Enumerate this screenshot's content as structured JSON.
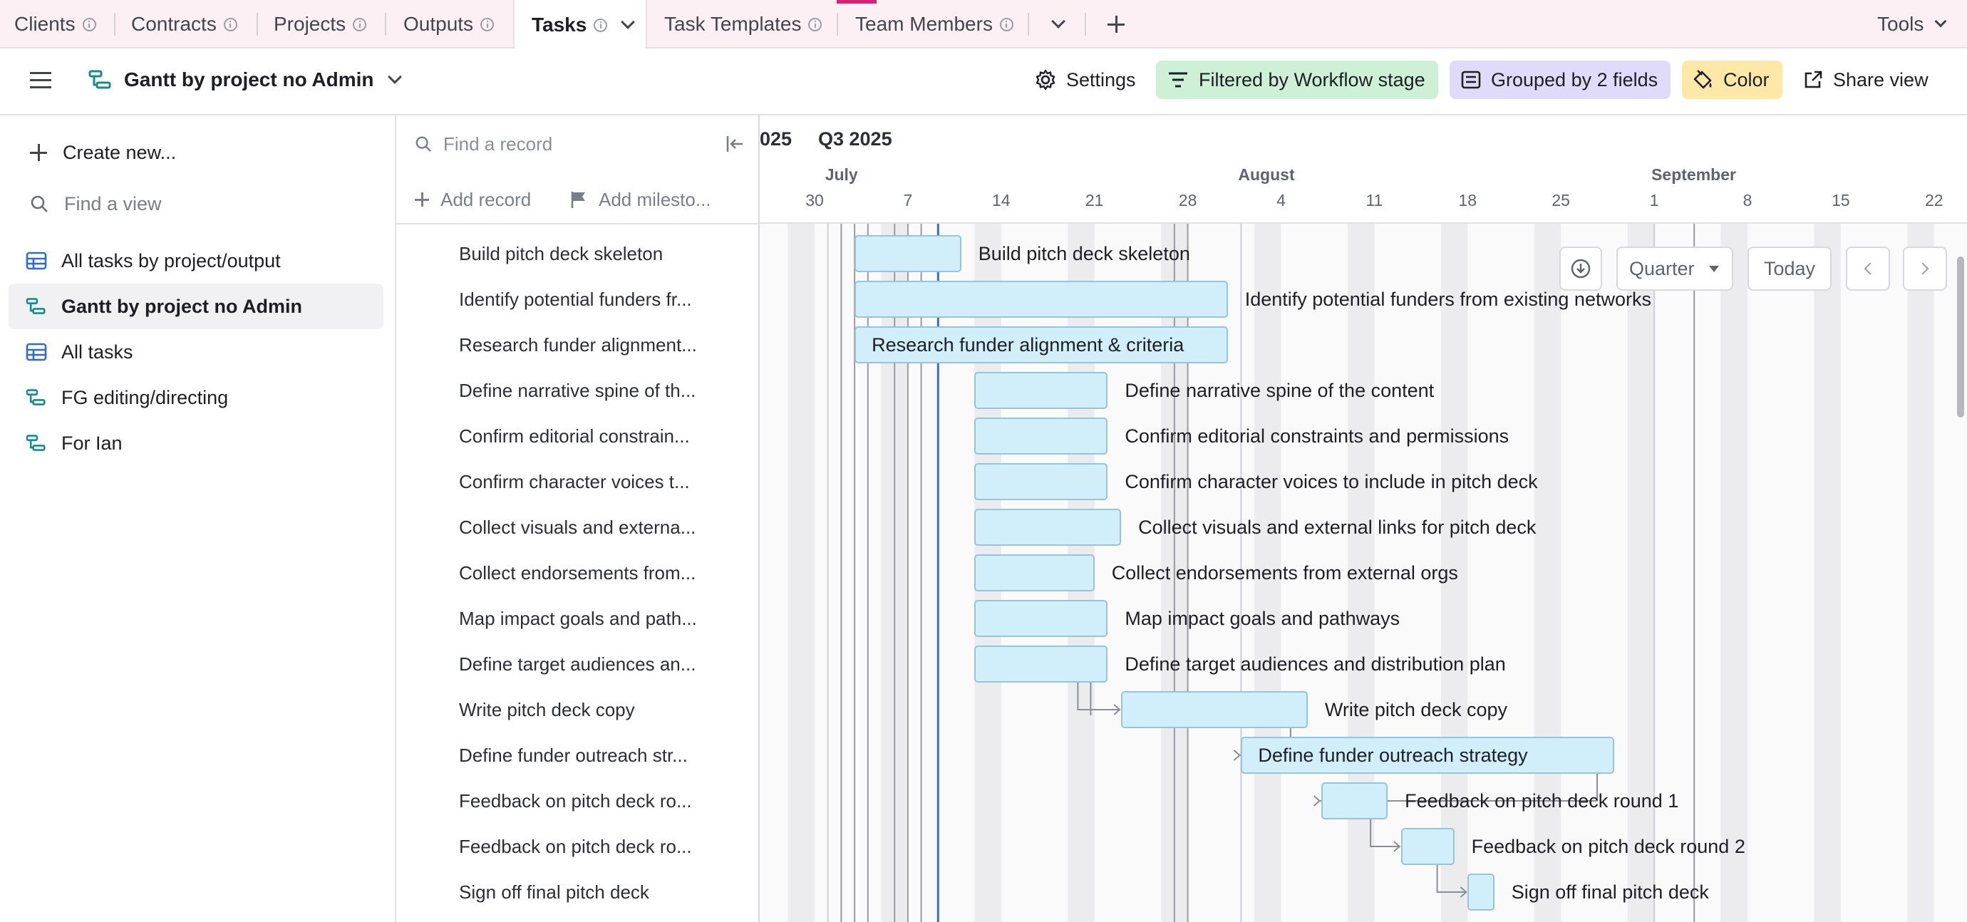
{
  "tabs": [
    {
      "label": "Clients"
    },
    {
      "label": "Contracts"
    },
    {
      "label": "Projects"
    },
    {
      "label": "Outputs"
    },
    {
      "label": "Tasks"
    },
    {
      "label": "Task Templates"
    },
    {
      "label": "Team Members"
    }
  ],
  "tools_label": "Tools",
  "view": {
    "name": "Gantt by project no Admin",
    "settings_label": "Settings",
    "filter_label": "Filtered by Workflow stage",
    "group_label": "Grouped by 2 fields",
    "color_label": "Color",
    "share_label": "Share view"
  },
  "sidebar": {
    "create_label": "Create new...",
    "find_view_placeholder": "Find a view",
    "views": [
      {
        "label": "All tasks by project/output",
        "type": "grid"
      },
      {
        "label": "Gantt by project no Admin",
        "type": "gantt"
      },
      {
        "label": "All tasks",
        "type": "grid"
      },
      {
        "label": "FG editing/directing",
        "type": "gantt"
      },
      {
        "label": "For Ian",
        "type": "gantt"
      }
    ]
  },
  "records": {
    "find_placeholder": "Find a record",
    "add_record_label": "Add record",
    "add_milestone_label": "Add milesto...",
    "rows": [
      "Build pitch deck skeleton",
      "Identify potential funders fr...",
      "Research funder alignment...",
      "Define narrative spine of th...",
      "Confirm editorial constrain...",
      "Confirm character voices t...",
      "Collect visuals and externa...",
      "Collect endorsements from...",
      "Map impact goals and path...",
      "Define target audiences an...",
      "Write pitch deck copy",
      "Define funder outreach str...",
      "Feedback on pitch deck ro...",
      "Feedback on pitch deck ro...",
      "Sign off final pitch deck"
    ]
  },
  "gantt": {
    "quarter_prev": "025",
    "quarter": "Q3 2025",
    "months": [
      "July",
      "August",
      "September"
    ],
    "weeks": [
      "30",
      "7",
      "14",
      "21",
      "28",
      "4",
      "11",
      "18",
      "25",
      "1",
      "8",
      "15",
      "22"
    ],
    "scale_label": "Quarter",
    "today_label": "Today",
    "tasks": [
      {
        "label": "Build pitch deck skeleton",
        "start": "2025-07-03",
        "end": "2025-07-11"
      },
      {
        "label": "Identify potential funders from existing networks",
        "start": "2025-07-03",
        "end": "2025-07-31"
      },
      {
        "label": "Research funder alignment & criteria",
        "start": "2025-07-03",
        "end": "2025-07-31"
      },
      {
        "label": "Define narrative spine of the content",
        "start": "2025-07-12",
        "end": "2025-07-22"
      },
      {
        "label": "Confirm editorial constraints and permissions",
        "start": "2025-07-12",
        "end": "2025-07-22"
      },
      {
        "label": "Confirm character voices to include in pitch deck",
        "start": "2025-07-12",
        "end": "2025-07-22"
      },
      {
        "label": "Collect visuals and external links for pitch deck",
        "start": "2025-07-12",
        "end": "2025-07-23"
      },
      {
        "label": "Collect endorsements from external orgs",
        "start": "2025-07-12",
        "end": "2025-07-21"
      },
      {
        "label": "Map impact goals and pathways",
        "start": "2025-07-12",
        "end": "2025-07-22"
      },
      {
        "label": "Define target audiences and distribution plan",
        "start": "2025-07-12",
        "end": "2025-07-22"
      },
      {
        "label": "Write pitch deck copy",
        "start": "2025-07-23",
        "end": "2025-08-06"
      },
      {
        "label": "Define funder outreach strategy",
        "start": "2025-08-01",
        "end": "2025-08-29"
      },
      {
        "label": "Feedback on pitch deck round 1",
        "start": "2025-08-07",
        "end": "2025-08-12"
      },
      {
        "label": "Feedback on pitch deck round 2",
        "start": "2025-08-13",
        "end": "2025-08-17"
      },
      {
        "label": "Sign off final pitch deck",
        "start": "2025-08-18",
        "end": "2025-08-20"
      }
    ]
  },
  "colors": {
    "tabbar_bg": "#fdf0f5",
    "filter_bg": "#cdf0d6",
    "group_bg": "#e0dbf9",
    "color_bg": "#fde8a8",
    "bar_fill": "#d1eefb",
    "bar_border": "#98c4db",
    "today_line": "#2f6fd6"
  }
}
